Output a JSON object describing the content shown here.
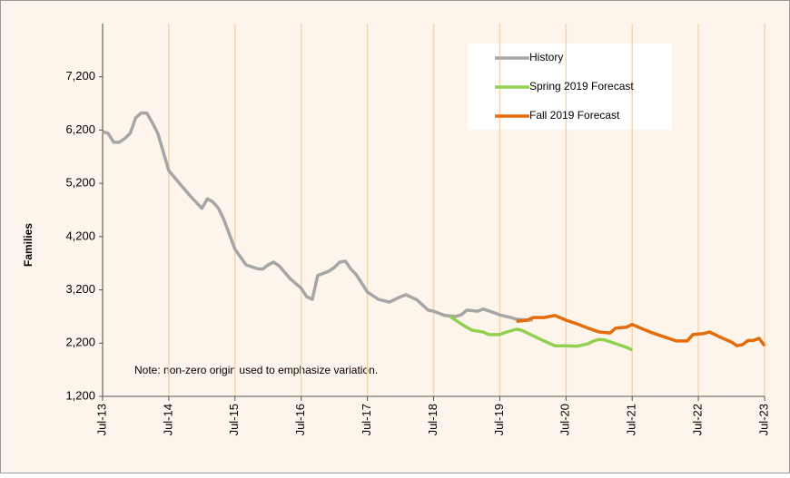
{
  "chart_data": {
    "type": "line",
    "y_label": "Families",
    "annotation": "Note: non-zero origin used to emphasize variation.",
    "ylim": [
      1200,
      8200
    ],
    "yticks": [
      {
        "value": 1200,
        "label": "1,200"
      },
      {
        "value": 2200,
        "label": "2,200"
      },
      {
        "value": 3200,
        "label": "3,200"
      },
      {
        "value": 4200,
        "label": "4,200"
      },
      {
        "value": 5200,
        "label": "5,200"
      },
      {
        "value": 6200,
        "label": "6,200"
      },
      {
        "value": 7200,
        "label": "7,200"
      }
    ],
    "xlim": [
      "2013-07",
      "2023-07"
    ],
    "xticks": [
      {
        "value": "2013-07",
        "label": "Jul-13"
      },
      {
        "value": "2014-07",
        "label": "Jul-14"
      },
      {
        "value": "2015-07",
        "label": "Jul-15"
      },
      {
        "value": "2016-07",
        "label": "Jul-16"
      },
      {
        "value": "2017-07",
        "label": "Jul-17"
      },
      {
        "value": "2018-07",
        "label": "Jul-18"
      },
      {
        "value": "2019-07",
        "label": "Jul-19"
      },
      {
        "value": "2020-07",
        "label": "Jul-20"
      },
      {
        "value": "2021-07",
        "label": "Jul-21"
      },
      {
        "value": "2022-07",
        "label": "Jul-22"
      },
      {
        "value": "2023-07",
        "label": "Jul-23"
      }
    ],
    "grid": "x",
    "legend": "top-right",
    "series": [
      {
        "name": "History",
        "color": "#a6a6a6",
        "x": [
          "2013-07",
          "2013-08",
          "2013-09",
          "2013-10",
          "2013-11",
          "2013-12",
          "2014-01",
          "2014-02",
          "2014-03",
          "2014-04",
          "2014-05",
          "2014-07",
          "2014-09",
          "2014-11",
          "2015-01",
          "2015-02",
          "2015-03",
          "2015-04",
          "2015-05",
          "2015-07",
          "2015-09",
          "2015-11",
          "2015-12",
          "2016-01",
          "2016-02",
          "2016-03",
          "2016-05",
          "2016-07",
          "2016-08",
          "2016-09",
          "2016-10",
          "2016-12",
          "2017-01",
          "2017-02",
          "2017-03",
          "2017-04",
          "2017-05",
          "2017-07",
          "2017-09",
          "2017-11",
          "2017-12",
          "2018-01",
          "2018-02",
          "2018-04",
          "2018-06",
          "2018-07",
          "2018-09",
          "2018-11",
          "2018-12",
          "2019-01",
          "2019-03",
          "2019-04",
          "2019-06",
          "2019-07",
          "2019-09",
          "2019-10",
          "2019-12",
          "2020-01"
        ],
        "values": [
          6170,
          6140,
          5970,
          5970,
          6040,
          6140,
          6430,
          6520,
          6520,
          6340,
          6140,
          5440,
          5190,
          4950,
          4730,
          4910,
          4850,
          4730,
          4520,
          3960,
          3670,
          3600,
          3590,
          3670,
          3720,
          3650,
          3410,
          3230,
          3070,
          3020,
          3470,
          3550,
          3620,
          3720,
          3740,
          3590,
          3480,
          3160,
          3020,
          2970,
          3020,
          3070,
          3110,
          3010,
          2820,
          2800,
          2720,
          2700,
          2730,
          2820,
          2800,
          2840,
          2770,
          2730,
          2680,
          2650,
          2630,
          2640
        ]
      },
      {
        "name": "Spring 2019 Forecast",
        "color": "#92d050",
        "x": [
          "2018-10",
          "2018-12",
          "2019-02",
          "2019-04",
          "2019-05",
          "2019-07",
          "2019-08",
          "2019-10",
          "2019-11",
          "2020-01",
          "2020-03",
          "2020-05",
          "2020-07",
          "2020-09",
          "2020-11",
          "2020-12",
          "2021-01",
          "2021-02",
          "2021-04",
          "2021-06",
          "2021-07"
        ],
        "values": [
          2700,
          2560,
          2440,
          2410,
          2360,
          2360,
          2400,
          2460,
          2440,
          2340,
          2240,
          2150,
          2150,
          2140,
          2190,
          2240,
          2270,
          2260,
          2190,
          2120,
          2070
        ]
      },
      {
        "name": "Fall 2019 Forecast",
        "color": "#e46c0a",
        "x": [
          "2019-10",
          "2019-12",
          "2020-01",
          "2020-03",
          "2020-05",
          "2020-07",
          "2020-09",
          "2020-11",
          "2021-01",
          "2021-03",
          "2021-04",
          "2021-06",
          "2021-07",
          "2021-09",
          "2021-11",
          "2022-01",
          "2022-03",
          "2022-05",
          "2022-06",
          "2022-08",
          "2022-09",
          "2022-11",
          "2023-01",
          "2023-02",
          "2023-03",
          "2023-04",
          "2023-05",
          "2023-06",
          "2023-07"
        ],
        "values": [
          2610,
          2630,
          2680,
          2680,
          2720,
          2630,
          2560,
          2480,
          2410,
          2390,
          2480,
          2500,
          2550,
          2460,
          2380,
          2310,
          2240,
          2240,
          2360,
          2380,
          2410,
          2310,
          2220,
          2150,
          2170,
          2250,
          2250,
          2290,
          2150
        ]
      }
    ]
  }
}
